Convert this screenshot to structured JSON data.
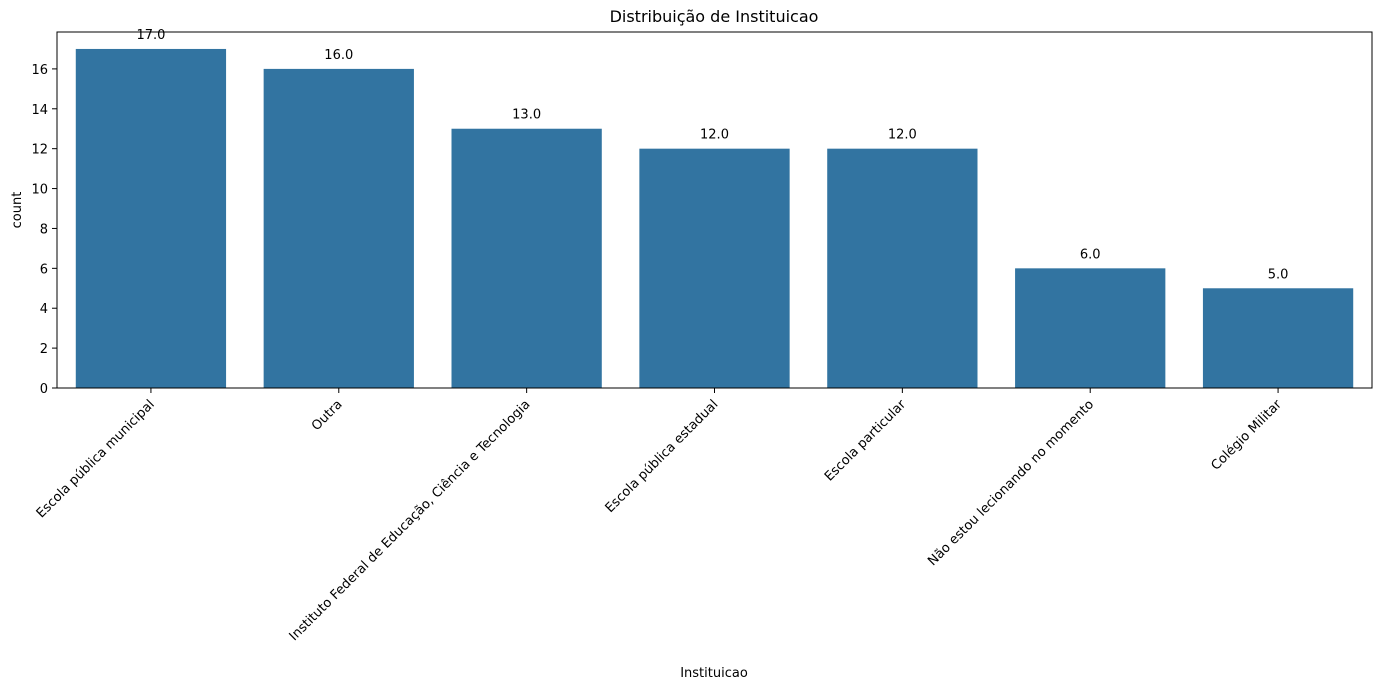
{
  "chart_data": {
    "type": "bar",
    "title": "Distribuição de Instituicao",
    "xlabel": "Instituicao",
    "ylabel": "count",
    "categories": [
      "Escola pública municipal",
      "Outra",
      "Instituto Federal de Educação, Ciência e Tecnologia",
      "Escola pública estadual",
      "Escola particular",
      "Não estou lecionando no momento",
      "Colégio Militar"
    ],
    "values": [
      17,
      16,
      13,
      12,
      12,
      6,
      5
    ],
    "data_labels": [
      "17.0",
      "16.0",
      "13.0",
      "12.0",
      "12.0",
      "6.0",
      "5.0"
    ],
    "ylim": [
      0,
      17.85
    ],
    "yticks": [
      0,
      2,
      4,
      6,
      8,
      10,
      12,
      14,
      16
    ],
    "grid": false,
    "bar_color": "#3274a1"
  }
}
